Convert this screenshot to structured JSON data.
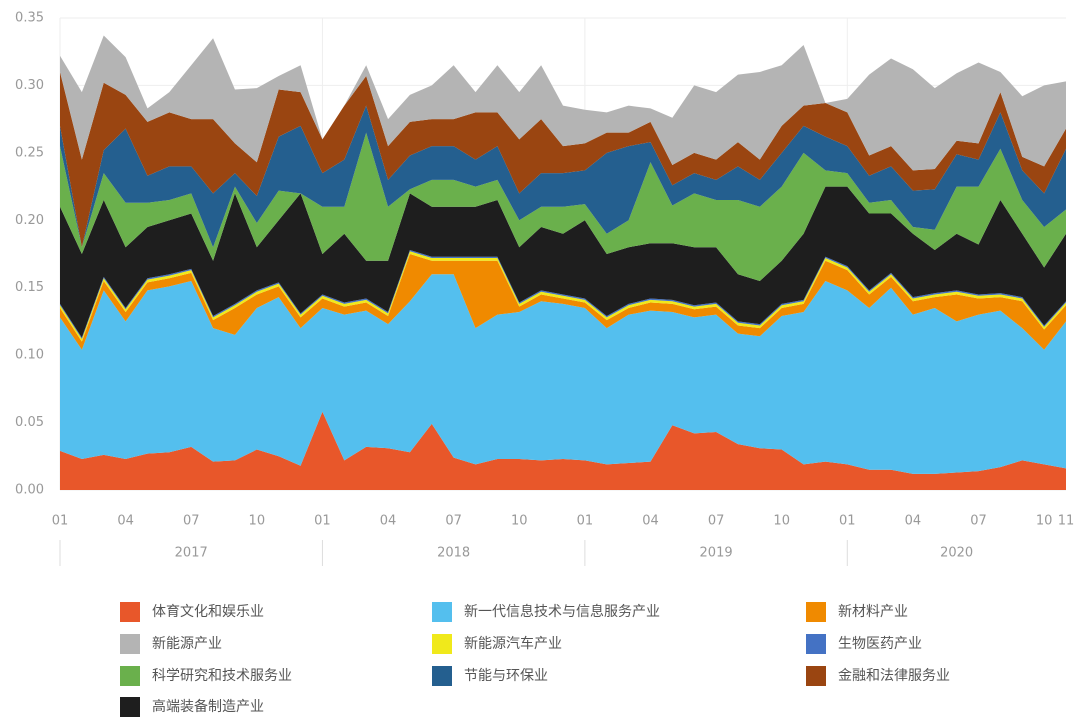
{
  "chart_data": {
    "type": "stacked_area",
    "categories": [
      "01",
      null,
      null,
      "04",
      null,
      null,
      "07",
      null,
      null,
      "10",
      null,
      null,
      "01",
      null,
      null,
      "04",
      null,
      null,
      "07",
      null,
      null,
      "10",
      null,
      null,
      "01",
      null,
      null,
      "04",
      null,
      null,
      "07",
      null,
      null,
      "10",
      null,
      null,
      "01",
      null,
      null,
      "04",
      null,
      null,
      "07",
      null,
      null,
      "10",
      "11"
    ],
    "years": [
      "2017",
      "2018",
      "2019",
      "2020"
    ],
    "ylim": [
      0,
      0.35
    ],
    "yticks": [
      {
        "value": 0,
        "label": "0.00"
      },
      {
        "value": 0.05,
        "label": "0.05"
      },
      {
        "value": 0.1,
        "label": "0.10"
      },
      {
        "value": 0.15,
        "label": "0.15"
      },
      {
        "value": 0.2,
        "label": "0.20"
      },
      {
        "value": 0.25,
        "label": "0.25"
      },
      {
        "value": 0.3,
        "label": "0.30"
      },
      {
        "value": 0.35,
        "label": "0.35"
      }
    ],
    "series": [
      {
        "name": "体育文化和娱乐业",
        "color": "#e8572a",
        "values": [
          0.029,
          0.023,
          0.026,
          0.023,
          0.027,
          0.028,
          0.032,
          0.021,
          0.022,
          0.03,
          0.025,
          0.018,
          0.058,
          0.022,
          0.032,
          0.031,
          0.028,
          0.049,
          0.024,
          0.019,
          0.023,
          0.023,
          0.022,
          0.023,
          0.022,
          0.019,
          0.02,
          0.021,
          0.048,
          0.042,
          0.043,
          0.034,
          0.031,
          0.03,
          0.019,
          0.021,
          0.019,
          0.015,
          0.015,
          0.012,
          0.012,
          0.013,
          0.014,
          0.017,
          0.022,
          0.019,
          0.016
        ]
      },
      {
        "name": "新一代信息技术与信息服务产业",
        "color": "#54bfee",
        "values": [
          0.099,
          0.081,
          0.122,
          0.102,
          0.121,
          0.123,
          0.123,
          0.099,
          0.093,
          0.105,
          0.118,
          0.102,
          0.077,
          0.108,
          0.101,
          0.092,
          0.112,
          0.111,
          0.136,
          0.101,
          0.107,
          0.109,
          0.118,
          0.115,
          0.113,
          0.101,
          0.11,
          0.112,
          0.084,
          0.086,
          0.087,
          0.082,
          0.083,
          0.099,
          0.113,
          0.134,
          0.129,
          0.12,
          0.135,
          0.118,
          0.123,
          0.112,
          0.116,
          0.116,
          0.098,
          0.085,
          0.109
        ]
      },
      {
        "name": "新材料产业",
        "color": "#f08a00",
        "values": [
          0.007,
          0.006,
          0.007,
          0.007,
          0.006,
          0.006,
          0.006,
          0.006,
          0.02,
          0.01,
          0.008,
          0.008,
          0.007,
          0.006,
          0.006,
          0.006,
          0.035,
          0.01,
          0.01,
          0.05,
          0.04,
          0.004,
          0.005,
          0.004,
          0.004,
          0.006,
          0.005,
          0.006,
          0.006,
          0.006,
          0.006,
          0.006,
          0.006,
          0.006,
          0.006,
          0.015,
          0.015,
          0.01,
          0.008,
          0.01,
          0.008,
          0.02,
          0.012,
          0.01,
          0.02,
          0.015,
          0.012
        ]
      },
      {
        "name": "新能源产业",
        "color": "#b4b4b4",
        "values": [
          0.012,
          0.05,
          0.035,
          0.028,
          0.01,
          0.015,
          0.04,
          0.06,
          0.04,
          0.055,
          0.01,
          0.02,
          0.0,
          0.0,
          0.008,
          0.02,
          0.02,
          0.025,
          0.04,
          0.015,
          0.035,
          0.035,
          0.04,
          0.03,
          0.025,
          0.015,
          0.02,
          0.01,
          0.035,
          0.05,
          0.05,
          0.05,
          0.065,
          0.045,
          0.045,
          0.0,
          0.01,
          0.06,
          0.065,
          0.075,
          0.06,
          0.05,
          0.06,
          0.015,
          0.045,
          0.06,
          0.035
        ]
      },
      {
        "name": "新能源汽车产业",
        "color": "#f0e91b",
        "values": [
          0.002,
          0.002,
          0.002,
          0.002,
          0.002,
          0.002,
          0.002,
          0.002,
          0.002,
          0.002,
          0.002,
          0.002,
          0.002,
          0.002,
          0.002,
          0.002,
          0.002,
          0.002,
          0.002,
          0.002,
          0.002,
          0.002,
          0.002,
          0.002,
          0.002,
          0.002,
          0.002,
          0.002,
          0.002,
          0.002,
          0.002,
          0.002,
          0.002,
          0.002,
          0.002,
          0.002,
          0.002,
          0.002,
          0.002,
          0.002,
          0.002,
          0.002,
          0.002,
          0.002,
          0.002,
          0.002,
          0.002
        ]
      },
      {
        "name": "生物医药产业",
        "color": "#4472c4",
        "values": [
          0.001,
          0.001,
          0.001,
          0.001,
          0.001,
          0.001,
          0.001,
          0.001,
          0.001,
          0.001,
          0.001,
          0.001,
          0.001,
          0.001,
          0.001,
          0.001,
          0.001,
          0.001,
          0.001,
          0.001,
          0.001,
          0.001,
          0.001,
          0.001,
          0.001,
          0.001,
          0.001,
          0.001,
          0.001,
          0.001,
          0.001,
          0.001,
          0.001,
          0.001,
          0.001,
          0.001,
          0.001,
          0.001,
          0.001,
          0.001,
          0.001,
          0.001,
          0.001,
          0.001,
          0.001,
          0.001,
          0.001
        ]
      },
      {
        "name": "科学研究和技术服务业",
        "color": "#6ab04c",
        "values": [
          0.045,
          0.005,
          0.02,
          0.033,
          0.018,
          0.015,
          0.015,
          0.01,
          0.005,
          0.018,
          0.022,
          0.0,
          0.035,
          0.02,
          0.095,
          0.04,
          0.003,
          0.02,
          0.02,
          0.015,
          0.015,
          0.02,
          0.015,
          0.02,
          0.012,
          0.015,
          0.02,
          0.06,
          0.028,
          0.04,
          0.035,
          0.055,
          0.055,
          0.055,
          0.06,
          0.012,
          0.01,
          0.008,
          0.01,
          0.005,
          0.015,
          0.035,
          0.043,
          0.038,
          0.025,
          0.03,
          0.018
        ]
      },
      {
        "name": "节能与环保业",
        "color": "#245f8f",
        "values": [
          0.015,
          0.0,
          0.017,
          0.055,
          0.02,
          0.025,
          0.02,
          0.04,
          0.01,
          0.02,
          0.04,
          0.05,
          0.025,
          0.035,
          0.02,
          0.02,
          0.025,
          0.025,
          0.025,
          0.02,
          0.025,
          0.02,
          0.025,
          0.025,
          0.025,
          0.06,
          0.055,
          0.015,
          0.015,
          0.015,
          0.015,
          0.025,
          0.02,
          0.025,
          0.02,
          0.025,
          0.02,
          0.02,
          0.025,
          0.027,
          0.03,
          0.024,
          0.02,
          0.027,
          0.022,
          0.025,
          0.045
        ]
      },
      {
        "name": "金融和法律服务业",
        "color": "#9a4511",
        "values": [
          0.04,
          0.065,
          0.05,
          0.025,
          0.04,
          0.04,
          0.035,
          0.055,
          0.022,
          0.025,
          0.035,
          0.025,
          0.025,
          0.04,
          0.022,
          0.025,
          0.025,
          0.02,
          0.02,
          0.035,
          0.025,
          0.04,
          0.04,
          0.02,
          0.02,
          0.015,
          0.01,
          0.015,
          0.015,
          0.015,
          0.015,
          0.018,
          0.015,
          0.02,
          0.015,
          0.025,
          0.025,
          0.015,
          0.015,
          0.015,
          0.015,
          0.01,
          0.012,
          0.015,
          0.01,
          0.02,
          0.015
        ]
      },
      {
        "name": "高端装备制造产业",
        "color": "#1e1e1e",
        "values": [
          0.072,
          0.062,
          0.057,
          0.045,
          0.038,
          0.04,
          0.041,
          0.041,
          0.082,
          0.032,
          0.046,
          0.089,
          0.03,
          0.051,
          0.028,
          0.038,
          0.042,
          0.037,
          0.037,
          0.037,
          0.042,
          0.041,
          0.047,
          0.045,
          0.058,
          0.046,
          0.042,
          0.041,
          0.042,
          0.043,
          0.041,
          0.035,
          0.032,
          0.032,
          0.049,
          0.052,
          0.059,
          0.057,
          0.044,
          0.047,
          0.032,
          0.042,
          0.037,
          0.069,
          0.047,
          0.043,
          0.05
        ]
      }
    ]
  }
}
